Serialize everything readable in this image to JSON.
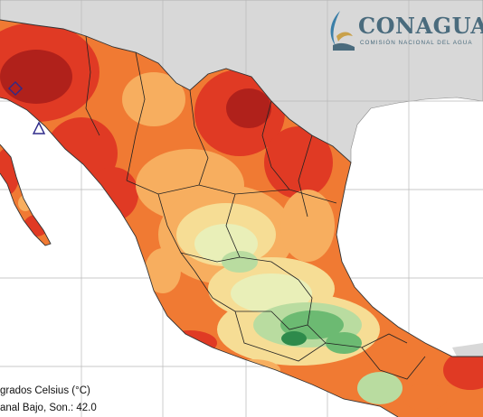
{
  "logo": {
    "name": "CONAGUA",
    "subtitle": "COMISIÓN NACIONAL DEL AGUA"
  },
  "legend": {
    "units": "grados Celsius (°C)",
    "max_station": "anal Bajo, Son.: 42.0"
  },
  "colors": {
    "ocean": "#ffffff",
    "us_land": "#d8d8d8",
    "hot_dark": "#b0211b",
    "hot": "#e03a24",
    "warm": "#f07a33",
    "mild": "#f7ae5f",
    "cool": "#f6dd95",
    "pale": "#e9efb8",
    "light_green": "#b9dca0",
    "green": "#6cba72",
    "dark_green": "#2e8a4b",
    "borders": "#222222",
    "grid": "#b9b9b9",
    "marker": "#2e2a8a"
  },
  "markers": [
    {
      "name": "diamond-marker"
    },
    {
      "name": "triangle-marker"
    }
  ]
}
